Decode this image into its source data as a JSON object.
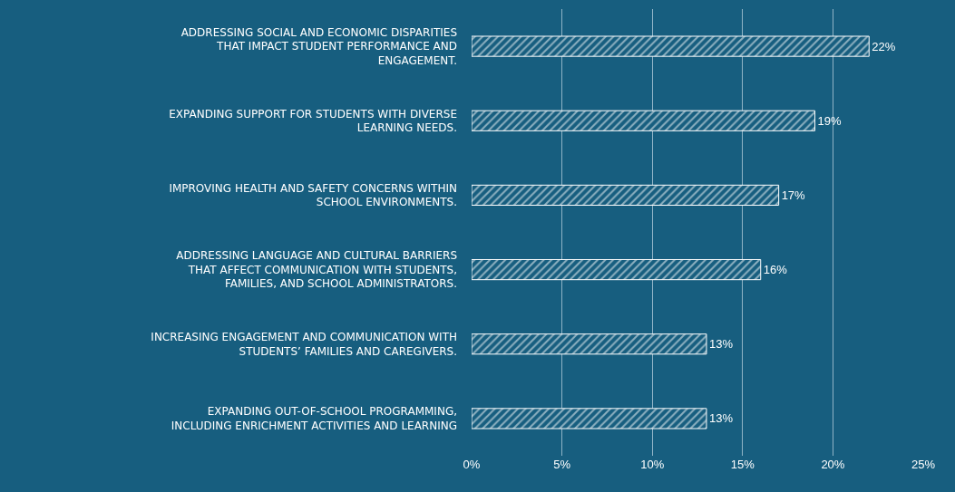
{
  "chart_data": {
    "type": "bar",
    "orientation": "horizontal",
    "categories": [
      "ADDRESSING SOCIAL AND ECONOMIC DISPARITIES THAT IMPACT STUDENT PERFORMANCE AND ENGAGEMENT.",
      "EXPANDING SUPPORT FOR STUDENTS WITH DIVERSE LEARNING NEEDS.",
      "IMPROVING HEALTH AND SAFETY CONCERNS WITHIN SCHOOL ENVIRONMENTS.",
      "ADDRESSING LANGUAGE AND CULTURAL BARRIERS THAT AFFECT COMMUNICATION WITH STUDENTS, FAMILIES, AND SCHOOL ADMINISTRATORS.",
      "INCREASING ENGAGEMENT AND COMMUNICATION WITH STUDENTS’ FAMILIES AND CAREGIVERS.",
      "EXPANDING OUT-OF-SCHOOL PROGRAMMING, INCLUDING ENRICHMENT ACTIVITIES AND LEARNING"
    ],
    "values": [
      22,
      19,
      17,
      16,
      13,
      13
    ],
    "value_labels": [
      "22%",
      "19%",
      "17%",
      "16%",
      "13%",
      "13%"
    ],
    "color": "#ffffff",
    "xlim": [
      0,
      25
    ],
    "xticks": [
      {
        "value": 0,
        "label": "0%"
      },
      {
        "value": 5,
        "label": "5%"
      },
      {
        "value": 10,
        "label": "10%"
      },
      {
        "value": 15,
        "label": "15%"
      },
      {
        "value": 20,
        "label": "20%"
      },
      {
        "value": 25,
        "label": "25%"
      }
    ],
    "grid": "x",
    "legend": false
  }
}
